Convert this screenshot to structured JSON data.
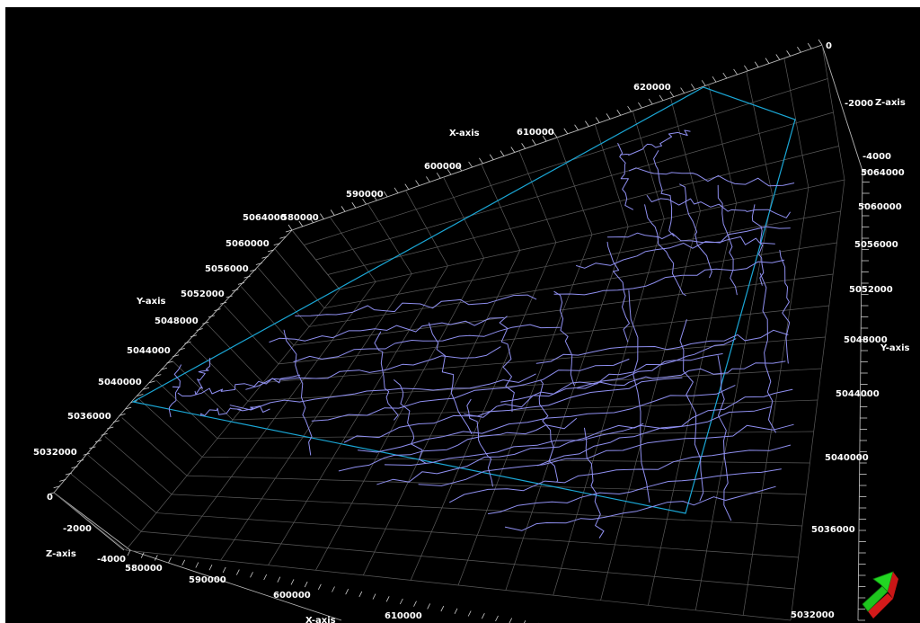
{
  "scene": {
    "background_color": "#000000",
    "grid_color": "#5a5a5a",
    "boundary_color": "#1aa7d6",
    "fault_color": "#8f8ff0",
    "orientation_icon": "green-red-3d-arrow-icon"
  },
  "axes": {
    "x_name": "X-axis",
    "y_name": "Y-axis",
    "z_name": "Z-axis",
    "x_ticks_top": [
      "580000",
      "590000",
      "600000",
      "610000",
      "620000"
    ],
    "x_ticks_bottom": [
      "580000",
      "590000",
      "600000",
      "610000"
    ],
    "y_ticks_left": [
      "5064000",
      "5060000",
      "5056000",
      "5052000",
      "5048000",
      "5044000",
      "5040000",
      "5036000",
      "5032000"
    ],
    "y_ticks_right": [
      "5064000",
      "5060000",
      "5056000",
      "5052000",
      "5048000",
      "5044000",
      "5040000",
      "5036000",
      "5032000"
    ],
    "z_ticks_right": [
      "0",
      "-2000",
      "-4000"
    ],
    "z_ticks_left": [
      "0",
      "-2000",
      "-4000"
    ]
  }
}
